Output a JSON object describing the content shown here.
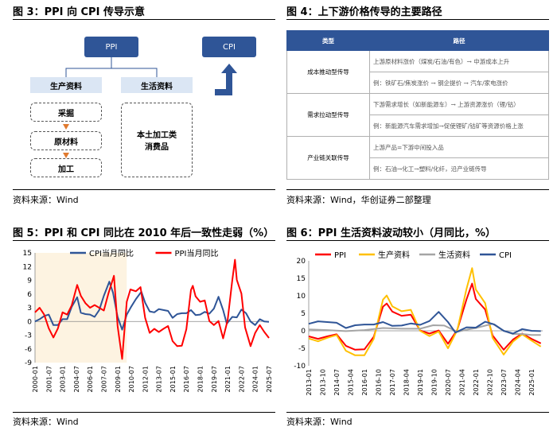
{
  "panel3": {
    "title": "图 3：PPI 向 CPI 传导示意",
    "ppi": "PPI",
    "cpi": "CPI",
    "production": "生产资料",
    "living": "生活资料",
    "steps": [
      "采掘",
      "原材料",
      "加工"
    ],
    "consumer_goods": "本土加工类\n消费品",
    "source": "资料来源：Wind"
  },
  "panel4": {
    "title": "图 4：上下游价格传导的主要路径",
    "header": [
      "类型",
      "路径"
    ],
    "rows": [
      {
        "type": "成本推动型传导",
        "paths": [
          "上游原材料涨价（煤炭/石油/有色）→ 中游成本上升",
          "例：铁矿石/焦炭涨价 → 钢企提价 → 汽车/家电涨价"
        ]
      },
      {
        "type": "需求拉动型传导",
        "paths": [
          "下游需求增长（如新能源车）→ 上游资源涨价（锂/钴）",
          "例：新能源汽车需求增加→促使锂矿/钴矿等资源价格上涨"
        ]
      },
      {
        "type": "产业链关联传导",
        "paths": [
          "上游产品=下游中间投入品",
          "例：石油→化工→塑料/化纤，沿产业链传导"
        ]
      }
    ],
    "source": "资料来源：Wind，华创证券二部整理"
  },
  "panel5": {
    "title": "图 5：PPI 和 CPI 同比在 2010 年后一致性走弱（%）",
    "source": "资料来源：Wind"
  },
  "panel6": {
    "title": "图 6：PPI 生活资料波动较小（月同比，%）",
    "source": "资料来源：Wind"
  },
  "chart_data": [
    {
      "type": "line",
      "ylim": [
        -9,
        15
      ],
      "yticks": [
        -9,
        -6,
        -3,
        0,
        3,
        6,
        9,
        12,
        15
      ],
      "xticks": [
        "2000-01",
        "2001-07",
        "2003-01",
        "2004-07",
        "2006-01",
        "2007-07",
        "2009-01",
        "2010-07",
        "2012-01",
        "2013-07",
        "2015-01",
        "2016-07",
        "2018-01",
        "2019-07",
        "2021-01",
        "2022-07",
        "2024-01",
        "2025-07"
      ],
      "xrange": [
        2000.0,
        2025.5
      ],
      "shaded_region": [
        2000.0,
        2010.0
      ],
      "legend": "top-center",
      "series": [
        {
          "name": "CPI当月同比",
          "color": "#2f5597",
          "points": [
            [
              2000.0,
              0
            ],
            [
              2000.5,
              0.5
            ],
            [
              2001.0,
              1.2
            ],
            [
              2001.5,
              1.5
            ],
            [
              2002.0,
              -0.8
            ],
            [
              2002.5,
              -0.8
            ],
            [
              2003.0,
              0.5
            ],
            [
              2003.5,
              0.5
            ],
            [
              2004.0,
              3.2
            ],
            [
              2004.6,
              5.3
            ],
            [
              2005.0,
              1.9
            ],
            [
              2005.5,
              1.6
            ],
            [
              2006.0,
              1.5
            ],
            [
              2006.5,
              1.0
            ],
            [
              2007.0,
              2.5
            ],
            [
              2007.5,
              5.6
            ],
            [
              2008.1,
              8.7
            ],
            [
              2008.5,
              6.3
            ],
            [
              2009.0,
              1.0
            ],
            [
              2009.5,
              -1.8
            ],
            [
              2010.0,
              1.5
            ],
            [
              2010.5,
              3.3
            ],
            [
              2011.0,
              4.9
            ],
            [
              2011.6,
              6.5
            ],
            [
              2012.0,
              4.1
            ],
            [
              2012.5,
              2.2
            ],
            [
              2013.0,
              2.0
            ],
            [
              2013.5,
              2.7
            ],
            [
              2014.0,
              2.5
            ],
            [
              2014.5,
              2.3
            ],
            [
              2015.0,
              0.8
            ],
            [
              2015.5,
              1.6
            ],
            [
              2016.0,
              1.8
            ],
            [
              2016.5,
              1.8
            ],
            [
              2017.0,
              2.5
            ],
            [
              2017.5,
              1.4
            ],
            [
              2018.0,
              1.5
            ],
            [
              2018.5,
              2.1
            ],
            [
              2019.0,
              1.7
            ],
            [
              2019.5,
              2.8
            ],
            [
              2020.0,
              5.4
            ],
            [
              2020.5,
              2.5
            ],
            [
              2020.9,
              -0.5
            ],
            [
              2021.5,
              1.0
            ],
            [
              2022.0,
              0.9
            ],
            [
              2022.5,
              2.6
            ],
            [
              2023.0,
              1.8
            ],
            [
              2023.5,
              0.0
            ],
            [
              2024.0,
              -0.8
            ],
            [
              2024.5,
              0.5
            ],
            [
              2025.0,
              0.0
            ],
            [
              2025.5,
              -0.1
            ]
          ]
        },
        {
          "name": "PPI当月同比",
          "color": "#ff0000",
          "points": [
            [
              2000.0,
              2.0
            ],
            [
              2000.5,
              3.0
            ],
            [
              2001.0,
              1.5
            ],
            [
              2001.5,
              -1.5
            ],
            [
              2002.0,
              -3.5
            ],
            [
              2002.5,
              -1.5
            ],
            [
              2003.0,
              2.0
            ],
            [
              2003.5,
              1.5
            ],
            [
              2004.0,
              3.5
            ],
            [
              2004.6,
              8.0
            ],
            [
              2005.0,
              5.6
            ],
            [
              2005.5,
              4.0
            ],
            [
              2006.0,
              3.0
            ],
            [
              2006.5,
              3.6
            ],
            [
              2007.0,
              3.0
            ],
            [
              2007.5,
              2.4
            ],
            [
              2008.0,
              6.1
            ],
            [
              2008.6,
              10.0
            ],
            [
              2009.0,
              -1.0
            ],
            [
              2009.5,
              -8.2
            ],
            [
              2010.0,
              4.3
            ],
            [
              2010.4,
              7.0
            ],
            [
              2011.0,
              6.6
            ],
            [
              2011.5,
              7.5
            ],
            [
              2012.0,
              0.8
            ],
            [
              2012.5,
              -2.5
            ],
            [
              2013.0,
              -1.6
            ],
            [
              2013.5,
              -2.3
            ],
            [
              2014.0,
              -1.6
            ],
            [
              2014.5,
              -1.0
            ],
            [
              2015.0,
              -4.3
            ],
            [
              2015.5,
              -5.4
            ],
            [
              2016.0,
              -5.3
            ],
            [
              2016.5,
              -1.7
            ],
            [
              2017.0,
              6.9
            ],
            [
              2017.2,
              7.8
            ],
            [
              2017.5,
              5.5
            ],
            [
              2018.0,
              4.3
            ],
            [
              2018.5,
              4.6
            ],
            [
              2019.0,
              0.1
            ],
            [
              2019.5,
              -0.8
            ],
            [
              2020.0,
              0.1
            ],
            [
              2020.5,
              -3.7
            ],
            [
              2021.0,
              0.3
            ],
            [
              2021.5,
              9.0
            ],
            [
              2021.8,
              13.5
            ],
            [
              2022.0,
              9.1
            ],
            [
              2022.5,
              6.1
            ],
            [
              2022.9,
              -1.3
            ],
            [
              2023.5,
              -5.4
            ],
            [
              2024.0,
              -2.5
            ],
            [
              2024.5,
              -0.8
            ],
            [
              2025.0,
              -2.3
            ],
            [
              2025.5,
              -3.6
            ]
          ]
        }
      ]
    },
    {
      "type": "line",
      "ylim": [
        -10,
        20
      ],
      "yticks": [
        -10,
        -5,
        0,
        5,
        10,
        15,
        20
      ],
      "xticks": [
        "2013-01",
        "2013-10",
        "2014-07",
        "2015-04",
        "2016-01",
        "2016-10",
        "2017-07",
        "2018-04",
        "2019-01",
        "2019-10",
        "2020-07",
        "2021-04",
        "2022-01",
        "2022-10",
        "2023-07",
        "2024-04",
        "2025-01"
      ],
      "xrange": [
        2013.0,
        2025.6
      ],
      "legend": "top-left",
      "series": [
        {
          "name": "PPI",
          "color": "#ff0000",
          "points": [
            [
              2013.0,
              -1.6
            ],
            [
              2013.5,
              -2.3
            ],
            [
              2014.0,
              -1.6
            ],
            [
              2014.5,
              -1.0
            ],
            [
              2015.0,
              -4.3
            ],
            [
              2015.5,
              -5.4
            ],
            [
              2016.0,
              -5.3
            ],
            [
              2016.5,
              -1.7
            ],
            [
              2017.0,
              6.9
            ],
            [
              2017.2,
              7.8
            ],
            [
              2017.5,
              5.5
            ],
            [
              2018.0,
              4.3
            ],
            [
              2018.5,
              4.6
            ],
            [
              2019.0,
              0.1
            ],
            [
              2019.5,
              -0.8
            ],
            [
              2020.0,
              0.1
            ],
            [
              2020.5,
              -3.7
            ],
            [
              2021.0,
              0.3
            ],
            [
              2021.5,
              9.0
            ],
            [
              2021.8,
              13.5
            ],
            [
              2022.0,
              9.1
            ],
            [
              2022.5,
              6.1
            ],
            [
              2022.9,
              -1.3
            ],
            [
              2023.5,
              -5.4
            ],
            [
              2024.0,
              -2.5
            ],
            [
              2024.5,
              -0.8
            ],
            [
              2025.0,
              -2.3
            ],
            [
              2025.5,
              -3.6
            ]
          ]
        },
        {
          "name": "生产资料",
          "color": "#ffc000",
          "points": [
            [
              2013.0,
              -2.2
            ],
            [
              2013.5,
              -3.0
            ],
            [
              2014.0,
              -2.0
            ],
            [
              2014.5,
              -1.2
            ],
            [
              2015.0,
              -5.7
            ],
            [
              2015.5,
              -7.0
            ],
            [
              2016.0,
              -7.0
            ],
            [
              2016.5,
              -2.3
            ],
            [
              2017.0,
              8.9
            ],
            [
              2017.2,
              10.1
            ],
            [
              2017.5,
              7.0
            ],
            [
              2018.0,
              5.6
            ],
            [
              2018.5,
              6.0
            ],
            [
              2019.0,
              0.0
            ],
            [
              2019.5,
              -1.5
            ],
            [
              2020.0,
              -0.2
            ],
            [
              2020.5,
              -5.0
            ],
            [
              2021.0,
              0.2
            ],
            [
              2021.5,
              12.0
            ],
            [
              2021.8,
              17.9
            ],
            [
              2022.0,
              11.8
            ],
            [
              2022.5,
              7.9
            ],
            [
              2022.9,
              -2.0
            ],
            [
              2023.5,
              -6.8
            ],
            [
              2024.0,
              -3.1
            ],
            [
              2024.5,
              -1.0
            ],
            [
              2025.0,
              -2.8
            ],
            [
              2025.5,
              -4.5
            ]
          ]
        },
        {
          "name": "生活资料",
          "color": "#a5a5a5",
          "points": [
            [
              2013.0,
              0.4
            ],
            [
              2014.0,
              0.2
            ],
            [
              2015.0,
              -0.1
            ],
            [
              2016.0,
              0.2
            ],
            [
              2017.0,
              0.8
            ],
            [
              2018.0,
              0.6
            ],
            [
              2019.0,
              0.6
            ],
            [
              2019.7,
              1.6
            ],
            [
              2020.3,
              1.5
            ],
            [
              2021.0,
              -0.3
            ],
            [
              2021.5,
              0.3
            ],
            [
              2022.0,
              0.8
            ],
            [
              2022.9,
              2.0
            ],
            [
              2023.5,
              0.0
            ],
            [
              2024.0,
              -0.9
            ],
            [
              2024.5,
              -0.9
            ],
            [
              2025.0,
              -1.2
            ],
            [
              2025.5,
              -1.2
            ]
          ]
        },
        {
          "name": "CPI",
          "color": "#2f5597",
          "points": [
            [
              2013.0,
              2.0
            ],
            [
              2013.5,
              2.7
            ],
            [
              2014.0,
              2.5
            ],
            [
              2014.5,
              2.3
            ],
            [
              2015.0,
              0.8
            ],
            [
              2015.5,
              1.6
            ],
            [
              2016.0,
              1.8
            ],
            [
              2016.5,
              1.8
            ],
            [
              2017.0,
              2.5
            ],
            [
              2017.5,
              1.4
            ],
            [
              2018.0,
              1.5
            ],
            [
              2018.5,
              2.1
            ],
            [
              2019.0,
              1.7
            ],
            [
              2019.5,
              2.8
            ],
            [
              2020.0,
              5.4
            ],
            [
              2020.5,
              2.5
            ],
            [
              2020.9,
              -0.5
            ],
            [
              2021.5,
              1.0
            ],
            [
              2022.0,
              0.9
            ],
            [
              2022.5,
              2.6
            ],
            [
              2023.0,
              1.8
            ],
            [
              2023.5,
              0.0
            ],
            [
              2024.0,
              -0.8
            ],
            [
              2024.5,
              0.5
            ],
            [
              2025.0,
              0.0
            ],
            [
              2025.5,
              -0.1
            ]
          ]
        }
      ]
    }
  ]
}
